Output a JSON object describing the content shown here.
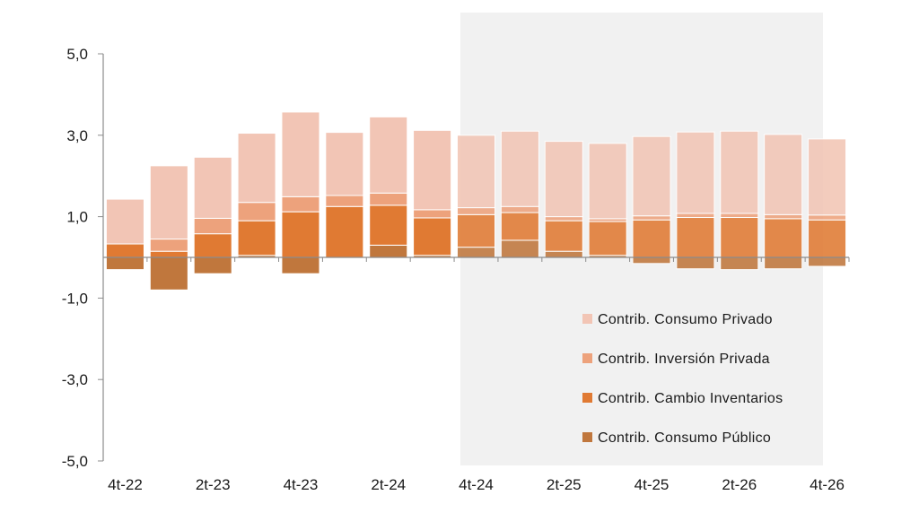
{
  "chart_data": {
    "type": "bar",
    "stacked": true,
    "categories": [
      "4t-22",
      "1t-23",
      "2t-23",
      "3t-23",
      "4t-23",
      "1t-24",
      "2t-24",
      "3t-24",
      "4t-24",
      "1t-25",
      "2t-25",
      "3t-25",
      "4t-25",
      "1t-26",
      "2t-26",
      "3t-26",
      "4t-26"
    ],
    "x_tick_labels": [
      "4t-22",
      "2t-23",
      "4t-23",
      "2t-24",
      "4t-24",
      "2t-25",
      "4t-25",
      "2t-26",
      "4t-26"
    ],
    "y_tick_labels": [
      "5,0",
      "3,0",
      "1,0",
      "-1,0",
      "-3,0",
      "-5,0"
    ],
    "ylim": [
      -5,
      5
    ],
    "forecast_shaded_from": "4t-24",
    "grid": false,
    "legend_position": "bottom-right",
    "series": [
      {
        "name": "Contrib. Consumo Público",
        "color": "#c0773d",
        "values": [
          -0.3,
          -0.8,
          -0.4,
          0.05,
          -0.4,
          0.0,
          0.3,
          0.05,
          0.25,
          0.42,
          0.15,
          0.05,
          -0.15,
          -0.28,
          -0.3,
          -0.28,
          -0.22
        ]
      },
      {
        "name": "Contrib. Cambio Inventarios",
        "color": "#e07a33",
        "values": [
          0.33,
          0.15,
          0.58,
          0.85,
          1.12,
          1.25,
          0.98,
          0.92,
          0.8,
          0.68,
          0.75,
          0.83,
          0.92,
          0.98,
          0.98,
          0.95,
          0.92
        ]
      },
      {
        "name": "Contrib. Inversión Privada",
        "color": "#eda27c",
        "values": [
          0.0,
          0.3,
          0.38,
          0.45,
          0.37,
          0.27,
          0.3,
          0.2,
          0.17,
          0.15,
          0.1,
          0.07,
          0.1,
          0.1,
          0.1,
          0.1,
          0.12
        ]
      },
      {
        "name": "Contrib. Consumo Privado",
        "color": "#f2c5b5",
        "values": [
          1.1,
          1.8,
          1.5,
          1.7,
          2.08,
          1.55,
          1.87,
          1.95,
          1.78,
          1.85,
          1.85,
          1.85,
          1.95,
          2.0,
          2.02,
          1.97,
          1.87
        ]
      }
    ],
    "legend_order": [
      "Contrib. Consumo Privado",
      "Contrib. Inversión Privada",
      "Contrib. Cambio Inventarios",
      "Contrib. Consumo Público"
    ]
  }
}
